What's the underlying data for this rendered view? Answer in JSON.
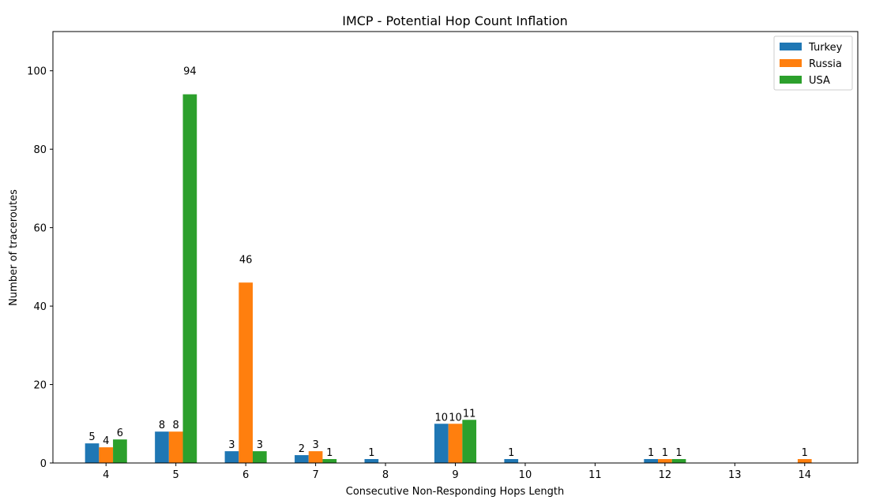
{
  "chart_data": {
    "type": "bar",
    "title": "IMCP - Potential Hop Count Inflation",
    "xlabel": "Consecutive Non-Responding Hops Length",
    "ylabel": "Number of traceroutes",
    "categories": [
      "4",
      "5",
      "6",
      "7",
      "8",
      "9",
      "10",
      "11",
      "12",
      "13",
      "14"
    ],
    "ylim": [
      0,
      110
    ],
    "yticks": [
      0,
      20,
      40,
      60,
      80,
      100
    ],
    "grid": false,
    "legend_position": "top-right",
    "series": [
      {
        "name": "Turkey",
        "color": "#1f77b4",
        "values": [
          5,
          8,
          3,
          2,
          1,
          10,
          1,
          0,
          1,
          0,
          0
        ]
      },
      {
        "name": "Russia",
        "color": "#ff7f0e",
        "values": [
          4,
          8,
          46,
          3,
          0,
          10,
          0,
          0,
          1,
          0,
          1
        ]
      },
      {
        "name": "USA",
        "color": "#2ca02c",
        "values": [
          6,
          94,
          3,
          1,
          0,
          11,
          0,
          0,
          1,
          0,
          0
        ]
      }
    ],
    "data_labels": [
      {
        "series": 0,
        "category": "4",
        "text": "5"
      },
      {
        "series": 1,
        "category": "4",
        "text": "4"
      },
      {
        "series": 2,
        "category": "4",
        "text": "6"
      },
      {
        "series": 0,
        "category": "5",
        "text": "8"
      },
      {
        "series": 1,
        "category": "5",
        "text": "8"
      },
      {
        "series": 2,
        "category": "5",
        "text": "94"
      },
      {
        "series": 0,
        "category": "6",
        "text": "3"
      },
      {
        "series": 1,
        "category": "6",
        "text": "46"
      },
      {
        "series": 2,
        "category": "6",
        "text": "3"
      },
      {
        "series": 0,
        "category": "7",
        "text": "2"
      },
      {
        "series": 1,
        "category": "7",
        "text": "3"
      },
      {
        "series": 2,
        "category": "7",
        "text": "1"
      },
      {
        "series": 0,
        "category": "8",
        "text": "1"
      },
      {
        "series": 0,
        "category": "9",
        "text": "10"
      },
      {
        "series": 1,
        "category": "9",
        "text": "10"
      },
      {
        "series": 2,
        "category": "9",
        "text": "11"
      },
      {
        "series": 0,
        "category": "10",
        "text": "1"
      },
      {
        "series": 0,
        "category": "12",
        "text": "1"
      },
      {
        "series": 1,
        "category": "12",
        "text": "1"
      },
      {
        "series": 2,
        "category": "12",
        "text": "1"
      },
      {
        "series": 1,
        "category": "14",
        "text": "1"
      }
    ]
  }
}
